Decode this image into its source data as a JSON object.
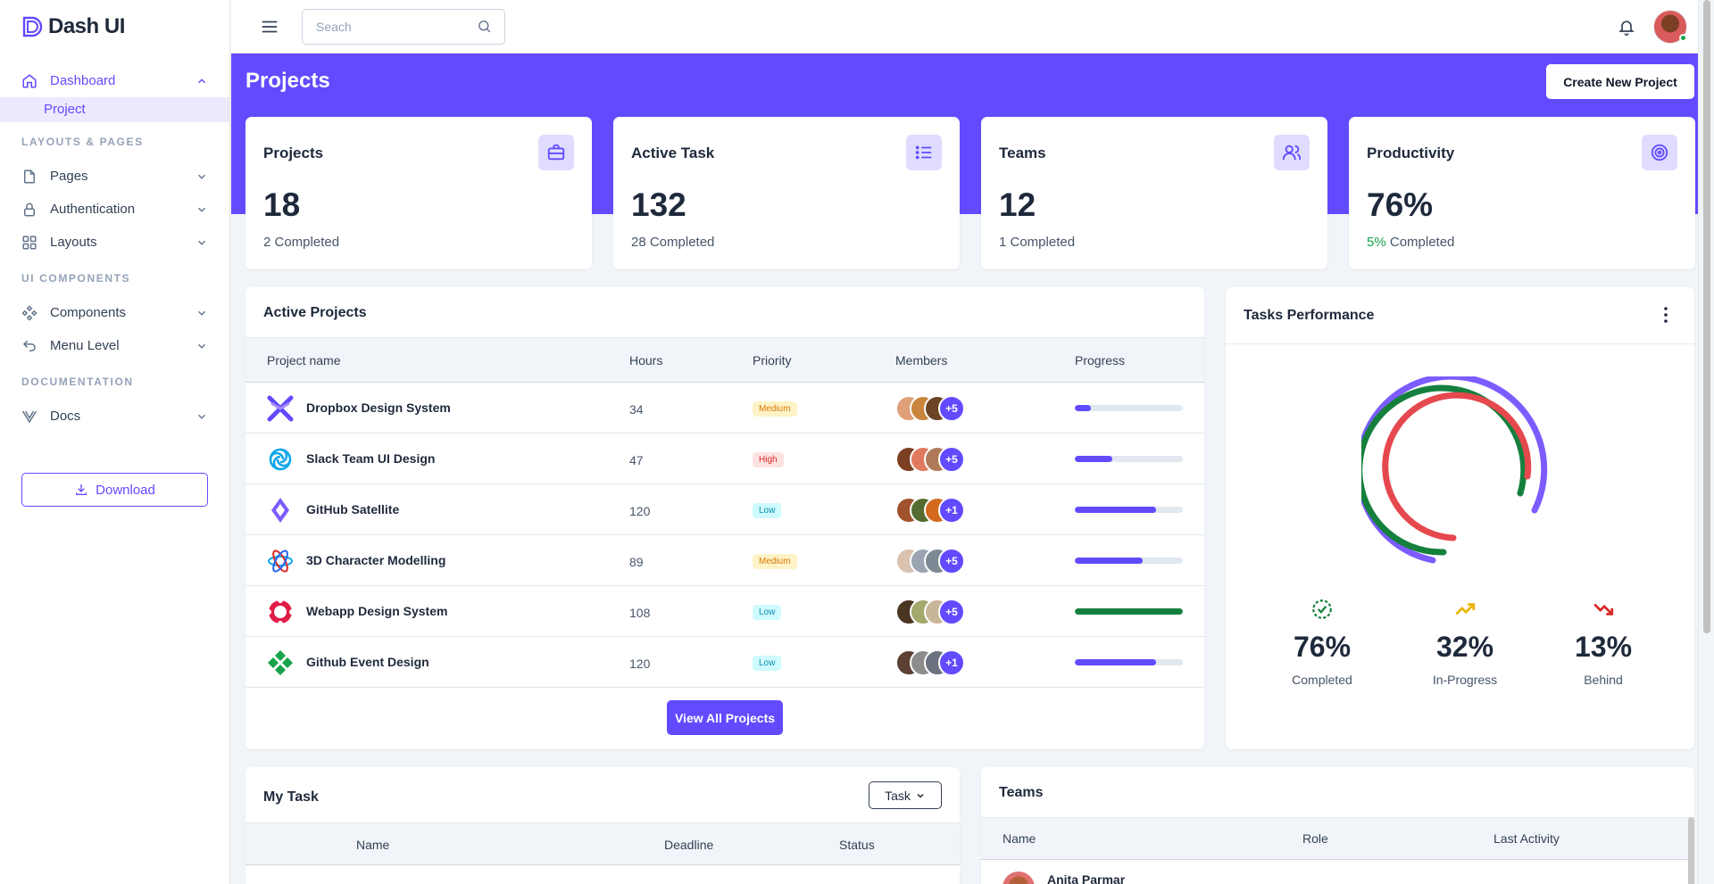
{
  "brand": {
    "name": "Dash UI"
  },
  "sidebar": {
    "dashboard": "Dashboard",
    "project": "Project",
    "section_layouts": "LAYOUTS & PAGES",
    "pages": "Pages",
    "authentication": "Authentication",
    "layouts": "Layouts",
    "section_ui": "UI COMPONENTS",
    "components": "Components",
    "menu_level": "Menu Level",
    "section_docs": "DOCUMENTATION",
    "docs": "Docs",
    "download": "Download"
  },
  "topbar": {
    "search_placeholder": "Seach"
  },
  "header": {
    "title": "Projects",
    "create_button": "Create New Project"
  },
  "stats": [
    {
      "title": "Projects",
      "value": "18",
      "sub_highlight": "",
      "sub": "2 Completed",
      "icon": "briefcase-icon"
    },
    {
      "title": "Active Task",
      "value": "132",
      "sub_highlight": "",
      "sub": "28 Completed",
      "icon": "list-icon"
    },
    {
      "title": "Teams",
      "value": "12",
      "sub_highlight": "",
      "sub": "1 Completed",
      "icon": "users-icon"
    },
    {
      "title": "Productivity",
      "value": "76%",
      "sub_highlight": "5%",
      "sub": " Completed",
      "icon": "target-icon"
    }
  ],
  "active_projects": {
    "title": "Active Projects",
    "columns": [
      "Project name",
      "Hours",
      "Priority",
      "Members",
      "Progress"
    ],
    "rows": [
      {
        "name": "Dropbox Design System",
        "hours": "34",
        "priority": "Medium",
        "extra": "+5",
        "progress": 15
      },
      {
        "name": "Slack Team UI Design",
        "hours": "47",
        "priority": "High",
        "extra": "+5",
        "progress": 35
      },
      {
        "name": "GitHub Satellite",
        "hours": "120",
        "priority": "Low",
        "extra": "+1",
        "progress": 75
      },
      {
        "name": "3D Character Modelling",
        "hours": "89",
        "priority": "Medium",
        "extra": "+5",
        "progress": 63
      },
      {
        "name": "Webapp Design System",
        "hours": "108",
        "priority": "Low",
        "extra": "+5",
        "progress": 100
      },
      {
        "name": "Github Event Design",
        "hours": "120",
        "priority": "Low",
        "extra": "+1",
        "progress": 75
      }
    ],
    "view_all": "View All Projects"
  },
  "tasks_performance": {
    "title": "Tasks Performance",
    "metrics": [
      {
        "value": "76%",
        "label": "Completed",
        "color": "#15803d",
        "icon": "check-circle-icon"
      },
      {
        "value": "32%",
        "label": "In-Progress",
        "color": "#eab308",
        "icon": "trending-up-icon"
      },
      {
        "value": "13%",
        "label": "Behind",
        "color": "#dc2626",
        "icon": "trending-down-icon"
      }
    ]
  },
  "my_task": {
    "title": "My Task",
    "filter": "Task",
    "columns": [
      "Name",
      "Deadline",
      "Status"
    ]
  },
  "teams": {
    "title": "Teams",
    "columns": [
      "Name",
      "Role",
      "Last Activity"
    ],
    "first_name": "Anita Parmar"
  },
  "colors": {
    "primary": "#624bff",
    "green": "#15803d",
    "red": "#dc2626"
  }
}
